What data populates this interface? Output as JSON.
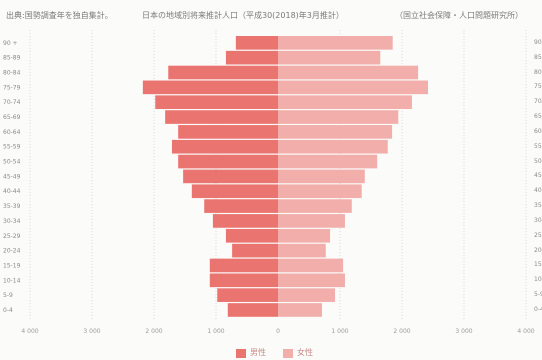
{
  "note": {
    "source": "出典:国勢調査年を独自集計。",
    "projection": "日本の地域別将来推計人口（平成30(2018)年3月推計）",
    "institute": "（国立社会保障・人口問題研究所）"
  },
  "chart_data": {
    "type": "bar",
    "orientation": "horizontal",
    "mirrored": true,
    "categories": [
      "90 +",
      "85-89",
      "80-84",
      "75-79",
      "70-74",
      "65-69",
      "60-64",
      "55-59",
      "50-54",
      "45-49",
      "40-44",
      "35-39",
      "30-34",
      "25-29",
      "20-24",
      "15-19",
      "10-14",
      "5-9",
      "0-4"
    ],
    "series": [
      {
        "name": "男性",
        "side": "left",
        "color": "#ea7470",
        "values": [
          680,
          840,
          1770,
          2180,
          1980,
          1820,
          1610,
          1710,
          1610,
          1530,
          1390,
          1190,
          1050,
          840,
          740,
          1100,
          1100,
          980,
          810
        ]
      },
      {
        "name": "女性",
        "side": "right",
        "color": "#f2aeaa",
        "values": [
          1850,
          1650,
          2260,
          2420,
          2160,
          1940,
          1840,
          1770,
          1600,
          1400,
          1350,
          1190,
          1080,
          840,
          770,
          1050,
          1080,
          920,
          710
        ]
      }
    ],
    "xlim": [
      -4000,
      4000
    ],
    "xticks": [
      -4000,
      -3000,
      -2000,
      -1000,
      0,
      1000,
      2000,
      3000,
      4000
    ],
    "xtick_labels": [
      "4 000",
      "3 000",
      "2 000",
      "1 000",
      "0",
      "1 000",
      "2 000",
      "3 000",
      "4 000"
    ],
    "grid": "vertical dotted",
    "legend": "bottom-center"
  }
}
